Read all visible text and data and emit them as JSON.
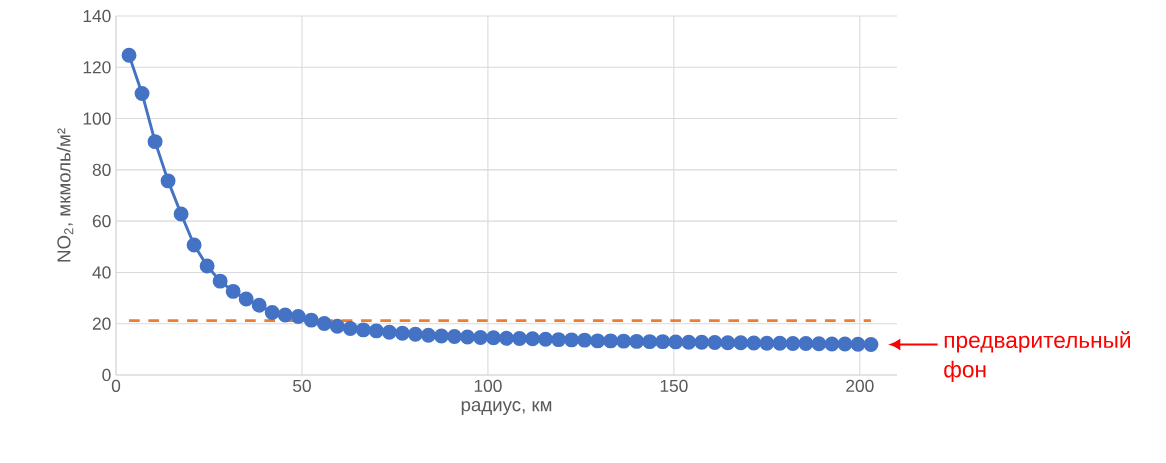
{
  "chart_data": {
    "type": "line",
    "xlabel": "радиус, км",
    "ylabel": "NO$_{2}$, мкмоль/м²",
    "xlim": [
      0,
      210
    ],
    "xticks": [
      0,
      50,
      100,
      150,
      200
    ],
    "ylim": [
      0,
      140
    ],
    "yticks": [
      0,
      20,
      40,
      60,
      80,
      100,
      120,
      140
    ],
    "grid": true,
    "marker": "circle",
    "line_style": "solid",
    "x": [
      3.5,
      7,
      10.5,
      14,
      17.5,
      21,
      24.5,
      28,
      31.5,
      35,
      38.5,
      42,
      45.5,
      49,
      52.5,
      56,
      59.5,
      63,
      66.5,
      70,
      73.5,
      77,
      80.5,
      84,
      87.5,
      91,
      94.5,
      98,
      101.5,
      105,
      108.5,
      112,
      115.5,
      119,
      122.5,
      126,
      129.5,
      133,
      136.5,
      140,
      143.5,
      147,
      150.5,
      154,
      157.5,
      161,
      164.5,
      168,
      171.5,
      175,
      178.5,
      182,
      185.5,
      189,
      192.5,
      196,
      199.5,
      203
    ],
    "series": [
      {
        "color": "#4472c4",
        "values": [
          124.7,
          109.8,
          91,
          75.7,
          62.8,
          50.7,
          42.5,
          36.6,
          32.6,
          29.6,
          27.2,
          24.4,
          23.4,
          22.8,
          21.4,
          20.1,
          19.0,
          18.1,
          17.6,
          17.2,
          16.7,
          16.3,
          15.9,
          15.5,
          15.2,
          15.0,
          14.8,
          14.6,
          14.5,
          14.3,
          14.2,
          14.1,
          13.9,
          13.8,
          13.7,
          13.6,
          13.3,
          13.3,
          13.2,
          13.1,
          13.0,
          13.0,
          12.9,
          12.8,
          12.8,
          12.7,
          12.6,
          12.6,
          12.5,
          12.4,
          12.4,
          12.3,
          12.3,
          12.2,
          12.1,
          12.1,
          12.0,
          11.9
        ]
      },
      {
        "color": "#ed7d31",
        "x": [
          3.5,
          203
        ],
        "values": [
          21.2,
          21.2
        ],
        "marker": "none",
        "line_style": "dashed"
      }
    ],
    "annotations": [
      "предварительный фон"
    ]
  }
}
